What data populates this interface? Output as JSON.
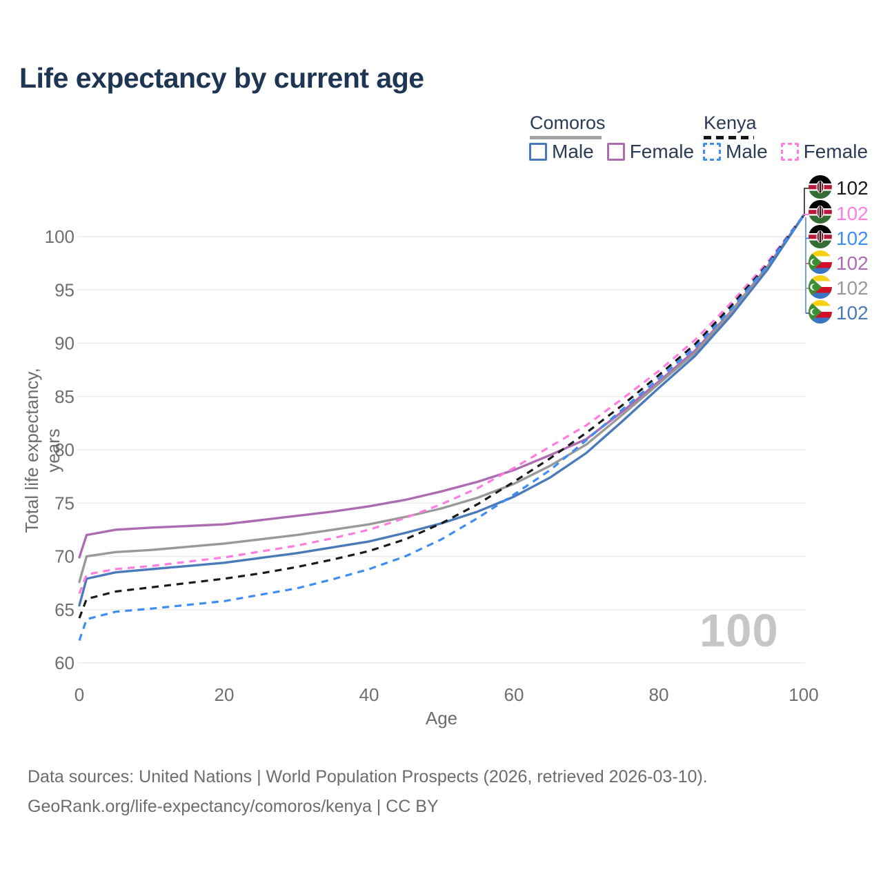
{
  "title": "Life expectancy by current age",
  "watermark": "100",
  "legend": {
    "groups": [
      {
        "label": "Comoros",
        "dashed": false,
        "underline_color": "#a3a3a3",
        "items": [
          {
            "label": "Male",
            "color": "#4a7ab9",
            "dashed": false
          },
          {
            "label": "Female",
            "color": "#ad6cb2",
            "dashed": false
          }
        ]
      },
      {
        "label": "Kenya",
        "dashed": true,
        "underline_color": "#151515",
        "items": [
          {
            "label": "Male",
            "color": "#3e8df4",
            "dashed": true
          },
          {
            "label": "Female",
            "color": "#ff7ce0",
            "dashed": true
          }
        ]
      }
    ]
  },
  "footer": {
    "line1": "Data sources: United Nations | World Population Prospects (2026, retrieved 2026-03-10).",
    "line2": "GeoRank.org/life-expectancy/comoros/kenya | CC BY"
  },
  "flags": {
    "Kenya": {
      "bands": [
        "#000000",
        "#ffffff",
        "#b5193b",
        "#ffffff",
        "#356e35"
      ],
      "shield": "#8c1d33"
    },
    "Comoros": {
      "stripes": [
        "#f7d116",
        "#ffffff",
        "#ce1126",
        "#3a75c4"
      ],
      "triangle": "#3d8e33",
      "crescent": "#ffffff"
    }
  },
  "chart_data": {
    "type": "line",
    "title": "Life expectancy by current age",
    "xlabel": "Age",
    "ylabel": "Total life expectancy, years",
    "xlim": [
      0,
      100
    ],
    "ylim": [
      60,
      102
    ],
    "xticks": [
      0,
      20,
      40,
      60,
      80,
      100
    ],
    "yticks": [
      60,
      65,
      70,
      75,
      80,
      85,
      90,
      95,
      100
    ],
    "grid": "horizontal",
    "legend_position": "top-right",
    "ages": [
      0,
      1,
      5,
      10,
      15,
      20,
      25,
      30,
      35,
      40,
      45,
      50,
      55,
      60,
      65,
      70,
      75,
      80,
      85,
      90,
      95,
      100
    ],
    "series": [
      {
        "name": "Comoros Female",
        "country": "Comoros",
        "sex": "Female",
        "color": "#ad6cb2",
        "dashed": false,
        "values": [
          69.9,
          72.0,
          72.5,
          72.7,
          72.85,
          73.0,
          73.4,
          73.8,
          74.2,
          74.7,
          75.3,
          76.1,
          77.0,
          78.1,
          79.5,
          81.0,
          83.6,
          86.4,
          89.3,
          93.0,
          97.2,
          102
        ]
      },
      {
        "name": "Comoros Both sexes",
        "country": "Comoros",
        "sex": "Both",
        "color": "#999999",
        "dashed": false,
        "values": [
          67.6,
          70.0,
          70.4,
          70.6,
          70.9,
          71.2,
          71.6,
          72.0,
          72.5,
          73.0,
          73.7,
          74.5,
          75.5,
          76.8,
          78.5,
          80.5,
          83.3,
          86.2,
          89.1,
          92.9,
          97.1,
          102
        ]
      },
      {
        "name": "Comoros Male",
        "country": "Comoros",
        "sex": "Male",
        "color": "#4a7ab9",
        "dashed": false,
        "values": [
          65.4,
          67.9,
          68.5,
          68.8,
          69.1,
          69.4,
          69.85,
          70.3,
          70.85,
          71.4,
          72.2,
          73.1,
          74.2,
          75.6,
          77.4,
          79.7,
          82.7,
          85.8,
          88.8,
          92.6,
          96.9,
          102
        ]
      },
      {
        "name": "Kenya Female",
        "country": "Kenya",
        "sex": "Female",
        "color": "#ff7ce0",
        "dashed": true,
        "values": [
          66.5,
          68.3,
          68.8,
          69.1,
          69.5,
          69.9,
          70.45,
          71.0,
          71.7,
          72.5,
          73.6,
          74.9,
          76.4,
          78.3,
          80.3,
          82.3,
          84.8,
          87.4,
          90.3,
          93.8,
          97.6,
          102
        ]
      },
      {
        "name": "Kenya Both sexes",
        "country": "Kenya",
        "sex": "Both",
        "color": "#1a1a1a",
        "dashed": true,
        "values": [
          64.2,
          66.0,
          66.7,
          67.1,
          67.5,
          67.9,
          68.4,
          69.0,
          69.7,
          70.5,
          71.6,
          73.1,
          74.9,
          77.0,
          79.2,
          81.6,
          84.2,
          87.0,
          89.9,
          93.5,
          97.4,
          102
        ]
      },
      {
        "name": "Kenya Male",
        "country": "Kenya",
        "sex": "Male",
        "color": "#3e8df4",
        "dashed": true,
        "values": [
          62.1,
          64.1,
          64.8,
          65.1,
          65.45,
          65.8,
          66.4,
          67.0,
          67.85,
          68.8,
          70.0,
          71.6,
          73.6,
          75.8,
          78.1,
          80.9,
          83.8,
          86.7,
          89.6,
          93.2,
          97.3,
          102
        ]
      }
    ],
    "end_labels": [
      {
        "name": "Kenya Both sexes",
        "country": "Kenya",
        "value": 102,
        "color": "#1a1a1a"
      },
      {
        "name": "Kenya Female",
        "country": "Kenya",
        "value": 102,
        "color": "#ff7ce0"
      },
      {
        "name": "Kenya Male",
        "country": "Kenya",
        "value": 102,
        "color": "#3e8df4"
      },
      {
        "name": "Comoros Female",
        "country": "Comoros",
        "value": 102,
        "color": "#ad6cb2"
      },
      {
        "name": "Comoros Both sexes",
        "country": "Comoros",
        "value": 102,
        "color": "#999999"
      },
      {
        "name": "Comoros Male",
        "country": "Comoros",
        "value": 102,
        "color": "#4a7ab9"
      }
    ]
  }
}
